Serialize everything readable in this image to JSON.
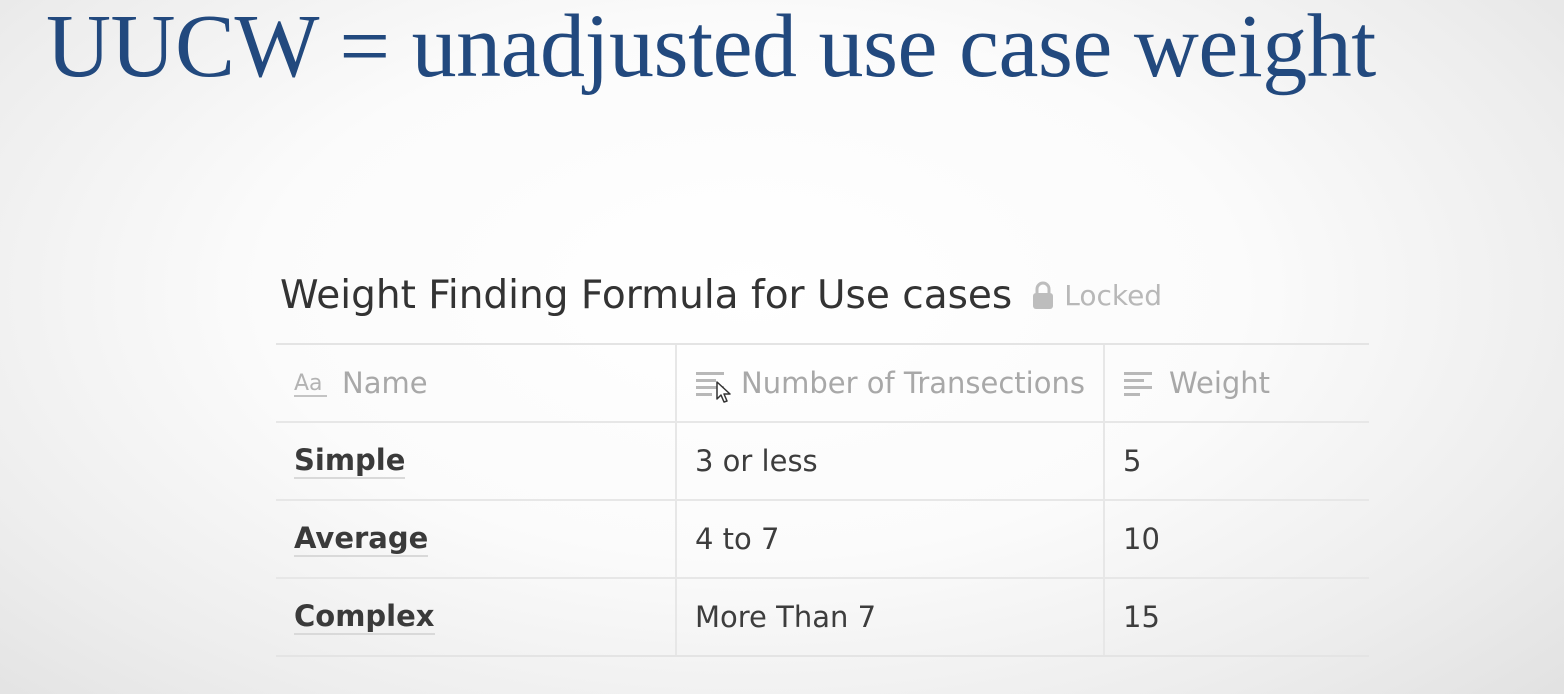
{
  "slide": {
    "title": "UUCW = unadjusted use case weight"
  },
  "database": {
    "title": "Weight Finding Formula for Use cases",
    "lock_icon": "lock-icon",
    "lock_label": "Locked",
    "columns": [
      {
        "icon": "text-type-icon",
        "label": "Name"
      },
      {
        "icon": "text-lines-icon",
        "label": "Number of Transections"
      },
      {
        "icon": "text-lines-icon",
        "label": "Weight"
      }
    ],
    "rows": [
      {
        "name": "Simple",
        "transactions": "3 or less",
        "weight": "5"
      },
      {
        "name": "Average",
        "transactions": "4 to 7",
        "weight": "10"
      },
      {
        "name": "Complex",
        "transactions": "More Than 7",
        "weight": "15"
      }
    ]
  },
  "colors": {
    "title": "#22497e",
    "text": "#3d3d3d",
    "muted": "#a8a8a8",
    "border": "#e7e7e7"
  }
}
